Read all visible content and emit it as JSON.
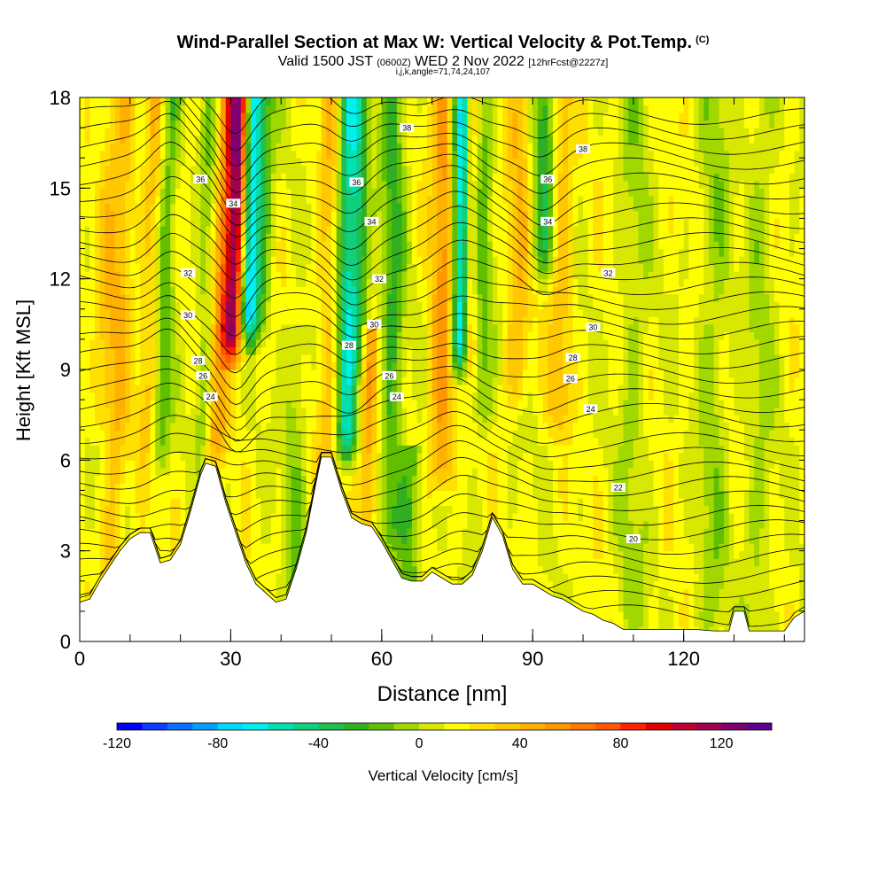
{
  "title": {
    "main": "Wind-Parallel Section at Max W: Vertical Velocity & Pot.Temp.",
    "copyright": "(C)",
    "valid_a": "Valid 1500 JST",
    "valid_utc": "(0600Z)",
    "valid_b": "WED 2 Nov 2022",
    "forecast": "[12hrFcst@2227z]",
    "indices": "i,j,k,angle=71,74,24,107"
  },
  "chart_data": {
    "type": "heatmap",
    "xlabel": "Distance [nm]",
    "ylabel": "Height [Kft MSL]",
    "xlim": [
      0,
      144
    ],
    "ylim": [
      0,
      18
    ],
    "x_ticks": [
      0,
      30,
      60,
      90,
      120
    ],
    "y_ticks": [
      0,
      3,
      6,
      9,
      12,
      15,
      18
    ],
    "colorbar": {
      "label": "Vertical Velocity [cm/s]",
      "range": [
        -120,
        140
      ],
      "step": 10,
      "ticks": [
        -120,
        -80,
        -40,
        0,
        40,
        80,
        120
      ],
      "colors": [
        "#0000ff",
        "#0a3dff",
        "#0a6eff",
        "#00a0ff",
        "#00d8ff",
        "#00f0f0",
        "#00e0b0",
        "#10d080",
        "#20c050",
        "#30b020",
        "#60c000",
        "#a0d800",
        "#d8e800",
        "#ffff00",
        "#ffe000",
        "#ffc800",
        "#ffb000",
        "#ff9800",
        "#ff7800",
        "#ff5800",
        "#ff2000",
        "#e00000",
        "#c00030",
        "#a00050",
        "#800070",
        "#600090"
      ]
    },
    "terrain": [
      [
        0,
        1.3
      ],
      [
        2,
        1.4
      ],
      [
        4,
        2.0
      ],
      [
        6,
        2.5
      ],
      [
        8,
        3.0
      ],
      [
        10,
        3.4
      ],
      [
        12,
        3.6
      ],
      [
        14,
        3.6
      ],
      [
        16,
        2.6
      ],
      [
        18,
        2.7
      ],
      [
        20,
        3.2
      ],
      [
        22,
        4.3
      ],
      [
        24,
        5.5
      ],
      [
        25,
        5.9
      ],
      [
        27,
        5.8
      ],
      [
        29,
        4.6
      ],
      [
        31,
        3.6
      ],
      [
        33,
        2.6
      ],
      [
        35,
        1.9
      ],
      [
        37,
        1.6
      ],
      [
        39,
        1.3
      ],
      [
        41,
        1.4
      ],
      [
        43,
        2.4
      ],
      [
        45,
        3.6
      ],
      [
        47,
        5.3
      ],
      [
        48,
        6.1
      ],
      [
        50,
        6.1
      ],
      [
        52,
        5.0
      ],
      [
        54,
        4.1
      ],
      [
        56,
        3.9
      ],
      [
        58,
        3.8
      ],
      [
        60,
        3.3
      ],
      [
        62,
        2.7
      ],
      [
        64,
        2.1
      ],
      [
        66,
        2.0
      ],
      [
        68,
        2.0
      ],
      [
        70,
        2.3
      ],
      [
        72,
        2.1
      ],
      [
        74,
        1.9
      ],
      [
        76,
        1.9
      ],
      [
        78,
        2.2
      ],
      [
        80,
        3.0
      ],
      [
        82,
        4.1
      ],
      [
        84,
        3.5
      ],
      [
        86,
        2.4
      ],
      [
        88,
        1.9
      ],
      [
        90,
        1.9
      ],
      [
        92,
        1.7
      ],
      [
        94,
        1.5
      ],
      [
        96,
        1.4
      ],
      [
        98,
        1.2
      ],
      [
        100,
        1.0
      ],
      [
        102,
        0.9
      ],
      [
        104,
        0.7
      ],
      [
        106,
        0.6
      ],
      [
        108,
        0.4
      ],
      [
        110,
        0.4
      ],
      [
        114,
        0.4
      ],
      [
        118,
        0.4
      ],
      [
        122,
        0.4
      ],
      [
        126,
        0.35
      ],
      [
        129,
        0.35
      ],
      [
        130,
        1.0
      ],
      [
        132,
        1.0
      ],
      [
        133,
        0.35
      ],
      [
        136,
        0.35
      ],
      [
        140,
        0.35
      ],
      [
        142,
        0.8
      ],
      [
        144,
        1.0
      ]
    ],
    "velocity_cores": [
      {
        "x": 30.5,
        "y0": 10.5,
        "y1": 18,
        "w": 2.2,
        "v": 115
      },
      {
        "x": 32.8,
        "y0": 11.0,
        "y1": 18,
        "w": 1.8,
        "v": -85
      },
      {
        "x": 35,
        "y0": 11,
        "y1": 18,
        "w": 2.4,
        "v": -40
      },
      {
        "x": 27.5,
        "y0": 7,
        "y1": 18,
        "w": 2.2,
        "v": 35
      },
      {
        "x": 25,
        "y0": 7,
        "y1": 18,
        "w": 1.8,
        "v": -25
      },
      {
        "x": 16.5,
        "y0": 7,
        "y1": 18,
        "w": 2.0,
        "v": -35
      },
      {
        "x": 14,
        "y0": 7,
        "y1": 18,
        "w": 2.2,
        "v": 25
      },
      {
        "x": 50,
        "y0": 6,
        "y1": 18,
        "w": 2.4,
        "v": 30
      },
      {
        "x": 53,
        "y0": 7,
        "y1": 18,
        "w": 2.4,
        "v": -70
      },
      {
        "x": 55.5,
        "y0": 10,
        "y1": 18,
        "w": 1.8,
        "v": -30
      },
      {
        "x": 62,
        "y0": 4,
        "y1": 18,
        "w": 2.4,
        "v": -35
      },
      {
        "x": 72,
        "y0": 6,
        "y1": 18,
        "w": 2.4,
        "v": 40
      },
      {
        "x": 75.5,
        "y0": 10,
        "y1": 18,
        "w": 1.6,
        "v": -85
      },
      {
        "x": 77.5,
        "y0": 10,
        "y1": 18,
        "w": 1.4,
        "v": 25
      },
      {
        "x": 80,
        "y0": 8,
        "y1": 18,
        "w": 2.0,
        "v": -25
      },
      {
        "x": 87,
        "y0": 9,
        "y1": 18,
        "w": 2.4,
        "v": 25
      },
      {
        "x": 92,
        "y0": 13,
        "y1": 18,
        "w": 2.2,
        "v": -40
      },
      {
        "x": 95.5,
        "y0": 8,
        "y1": 18,
        "w": 2.2,
        "v": 25
      },
      {
        "x": 8,
        "y0": 1.5,
        "y1": 18,
        "w": 2.0,
        "v": 25
      },
      {
        "x": 5,
        "y0": 8,
        "y1": 18,
        "w": 2.0,
        "v": 20
      },
      {
        "x": 43,
        "y0": 2,
        "y1": 9,
        "w": 2.2,
        "v": -20
      },
      {
        "x": 57.5,
        "y0": 4,
        "y1": 9,
        "w": 2.0,
        "v": 35
      },
      {
        "x": 66,
        "y0": 2,
        "y1": 5,
        "w": 2.4,
        "v": -30
      },
      {
        "x": 110,
        "y0": 1,
        "y1": 18,
        "w": 3.0,
        "v": -15
      },
      {
        "x": 126,
        "y0": 1,
        "y1": 18,
        "w": 3.0,
        "v": -18
      },
      {
        "x": 135,
        "y0": 1,
        "y1": 18,
        "w": 3.0,
        "v": -15
      }
    ],
    "isentrope_labels": [
      {
        "x": 65,
        "y": 17.0,
        "text": "38"
      },
      {
        "x": 100,
        "y": 16.3,
        "text": "38"
      },
      {
        "x": 24,
        "y": 15.3,
        "text": "36"
      },
      {
        "x": 55,
        "y": 15.2,
        "text": "36"
      },
      {
        "x": 93,
        "y": 15.3,
        "text": "36"
      },
      {
        "x": 30.5,
        "y": 14.5,
        "text": "34"
      },
      {
        "x": 58,
        "y": 13.9,
        "text": "34"
      },
      {
        "x": 93,
        "y": 13.9,
        "text": "34"
      },
      {
        "x": 21.5,
        "y": 12.2,
        "text": "32"
      },
      {
        "x": 59.5,
        "y": 12.0,
        "text": "32"
      },
      {
        "x": 105,
        "y": 12.2,
        "text": "32"
      },
      {
        "x": 21.5,
        "y": 10.8,
        "text": "30"
      },
      {
        "x": 58.5,
        "y": 10.5,
        "text": "30"
      },
      {
        "x": 102,
        "y": 10.4,
        "text": "30"
      },
      {
        "x": 23.5,
        "y": 9.3,
        "text": "28"
      },
      {
        "x": 53.5,
        "y": 9.8,
        "text": "28"
      },
      {
        "x": 98,
        "y": 9.4,
        "text": "28"
      },
      {
        "x": 24.5,
        "y": 8.8,
        "text": "26"
      },
      {
        "x": 61.5,
        "y": 8.8,
        "text": "26"
      },
      {
        "x": 97.5,
        "y": 8.7,
        "text": "26"
      },
      {
        "x": 26,
        "y": 8.1,
        "text": "24"
      },
      {
        "x": 63,
        "y": 8.1,
        "text": "24"
      },
      {
        "x": 101.5,
        "y": 7.7,
        "text": "24"
      },
      {
        "x": 107,
        "y": 5.1,
        "text": "22"
      },
      {
        "x": 110,
        "y": 3.4,
        "text": "20"
      }
    ]
  }
}
